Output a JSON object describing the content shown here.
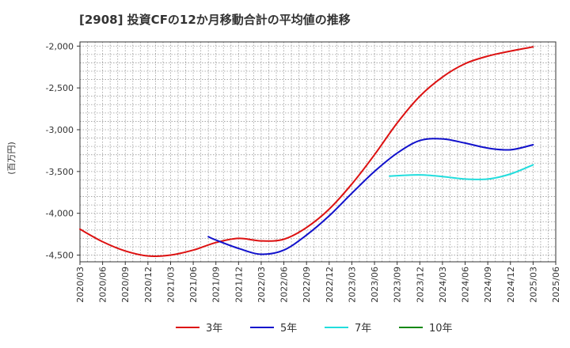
{
  "chart_data": {
    "type": "line",
    "title": "[2908]  投資CFの12か月移動合計の平均値の推移",
    "ylabel": "(百万円)",
    "xlabel": "",
    "ylim": [
      -4580,
      -1950
    ],
    "yticks": [
      -2000,
      -2500,
      -3000,
      -3500,
      -4000,
      -4500
    ],
    "ytick_labels": [
      "-2,000",
      "-2,500",
      "-3,000",
      "-3,500",
      "-4,000",
      "-4,500"
    ],
    "xticks": [
      "2020/03",
      "2020/06",
      "2020/09",
      "2020/12",
      "2021/03",
      "2021/06",
      "2021/09",
      "2021/12",
      "2022/03",
      "2022/06",
      "2022/09",
      "2022/12",
      "2023/03",
      "2023/06",
      "2023/09",
      "2023/12",
      "2024/03",
      "2024/06",
      "2024/09",
      "2024/12",
      "2025/03",
      "2025/06"
    ],
    "grid": true,
    "legend_position": "bottom",
    "series": [
      {
        "name": "3年",
        "color": "#dd1111",
        "points": [
          [
            "2020/03",
            -4190
          ],
          [
            "2020/06",
            -4340
          ],
          [
            "2020/09",
            -4450
          ],
          [
            "2020/12",
            -4510
          ],
          [
            "2021/03",
            -4500
          ],
          [
            "2021/06",
            -4440
          ],
          [
            "2021/09",
            -4350
          ],
          [
            "2021/12",
            -4300
          ],
          [
            "2022/03",
            -4330
          ],
          [
            "2022/06",
            -4310
          ],
          [
            "2022/09",
            -4170
          ],
          [
            "2022/12",
            -3950
          ],
          [
            "2023/03",
            -3650
          ],
          [
            "2023/06",
            -3300
          ],
          [
            "2023/09",
            -2920
          ],
          [
            "2023/12",
            -2600
          ],
          [
            "2024/03",
            -2370
          ],
          [
            "2024/06",
            -2210
          ],
          [
            "2024/09",
            -2120
          ],
          [
            "2024/12",
            -2060
          ],
          [
            "2025/03",
            -2010
          ]
        ]
      },
      {
        "name": "5年",
        "color": "#1111cc",
        "points": [
          [
            "2021/08",
            -4280
          ],
          [
            "2021/09",
            -4320
          ],
          [
            "2021/12",
            -4420
          ],
          [
            "2022/03",
            -4490
          ],
          [
            "2022/06",
            -4440
          ],
          [
            "2022/09",
            -4260
          ],
          [
            "2022/12",
            -4030
          ],
          [
            "2023/03",
            -3760
          ],
          [
            "2023/06",
            -3500
          ],
          [
            "2023/09",
            -3280
          ],
          [
            "2023/12",
            -3130
          ],
          [
            "2024/03",
            -3110
          ],
          [
            "2024/06",
            -3160
          ],
          [
            "2024/09",
            -3220
          ],
          [
            "2024/12",
            -3240
          ],
          [
            "2025/03",
            -3180
          ]
        ]
      },
      {
        "name": "7年",
        "color": "#22dddd",
        "points": [
          [
            "2023/08",
            -3555
          ],
          [
            "2023/09",
            -3550
          ],
          [
            "2023/12",
            -3540
          ],
          [
            "2024/03",
            -3560
          ],
          [
            "2024/06",
            -3590
          ],
          [
            "2024/09",
            -3590
          ],
          [
            "2024/12",
            -3530
          ],
          [
            "2025/03",
            -3420
          ]
        ]
      },
      {
        "name": "10年",
        "color": "#118811",
        "points": []
      }
    ]
  }
}
